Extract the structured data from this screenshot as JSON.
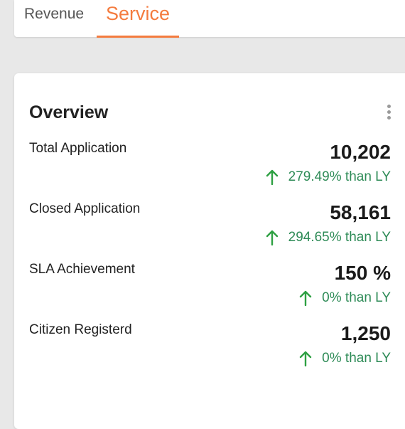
{
  "tabs": [
    {
      "label": "Revenue",
      "active": false
    },
    {
      "label": "Service",
      "active": true
    }
  ],
  "overview": {
    "title": "Overview",
    "metrics": [
      {
        "label": "Total Application",
        "value": "10,202",
        "change": "279.49% than LY",
        "trend_icon": "arrow-up-icon"
      },
      {
        "label": "Closed Application",
        "value": "58,161",
        "change": "294.65% than LY",
        "trend_icon": "arrow-up-icon"
      },
      {
        "label": "SLA Achievement",
        "value": "150 %",
        "change": "0% than LY",
        "trend_icon": "arrow-up-icon"
      },
      {
        "label": "Citizen Registerd",
        "value": "1,250",
        "change": "0% than LY",
        "trend_icon": "arrow-up-icon"
      }
    ]
  },
  "colors": {
    "accent": "#f47b3e",
    "positive": "#2e8b57",
    "arrow": "#2ea043"
  }
}
